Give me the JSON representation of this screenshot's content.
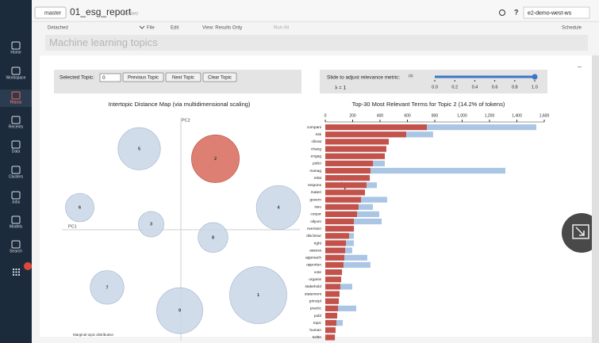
{
  "header": {
    "branch": "master",
    "title": "01_esg_report",
    "language": "(Python)",
    "help": "?",
    "workspace": "e2-demo-west-ws"
  },
  "sidebar": {
    "items": [
      "Home",
      "Workspace",
      "Repos",
      "Recents",
      "Data",
      "Clusters",
      "Jobs",
      "Models",
      "Search"
    ]
  },
  "toolbar": {
    "cluster": "Detached",
    "menus": [
      "File",
      "Edit",
      "View: Results Only"
    ],
    "run": "Run All",
    "schedule": "Schedule"
  },
  "cell": {
    "title": "Machine learning topics"
  },
  "controls": {
    "selected_label": "Selected Topic:",
    "selected_value": "0",
    "buttons": [
      "Previous Topic",
      "Next Topic",
      "Clear Topic"
    ],
    "slider_label": "Slide to adjust relevance metric:",
    "slider_note": "(2)",
    "lambda_label": "λ = 1",
    "slider": {
      "value": 1,
      "range": [
        0,
        1
      ],
      "ticks": [
        {
          "value": 0,
          "label": "0.0"
        },
        0.2,
        0.4,
        0.6,
        0.8,
        {
          "value": 1,
          "label": "1.0"
        }
      ]
    }
  },
  "chart_data": [
    {
      "type": "bubble",
      "title": "Intertopic Distance Map (via multidimensional scaling)",
      "x_label": "PC1",
      "y_label": "PC2",
      "footer": "Marginal topic distribution",
      "labels": [
        "1",
        "2",
        "3",
        "4",
        "5",
        "6",
        "7",
        "8",
        "9"
      ],
      "x": [
        0.65,
        0.29,
        -0.25,
        0.82,
        -0.35,
        -0.85,
        -0.62,
        0.27,
        -0.01
      ],
      "y": [
        -0.59,
        0.64,
        0.05,
        0.2,
        0.73,
        0.2,
        -0.52,
        -0.07,
        -0.73
      ],
      "size": [
        20,
        14,
        4,
        12,
        11,
        5,
        7,
        5.5,
        13
      ],
      "xlim": [
        -1,
        1
      ],
      "ylim": [
        -1,
        1
      ],
      "color": "#c9d6e8",
      "highlight": "2",
      "highlight_color": "#d8695a"
    },
    {
      "type": "bar",
      "orientation": "horizontal",
      "title": "Top-30 Most Relevant Terms for Topic 2 (14.2% of tokens)",
      "categories": [
        "compani",
        "risk",
        "climat",
        "chang",
        "engag",
        "polici",
        "manag",
        "relat",
        "respons",
        "materi",
        "govern",
        "issu",
        "corpor",
        "oilyum",
        "nversion",
        "disclosur",
        "right",
        "assess",
        "approach",
        "opportun",
        "vote",
        "organis",
        "stakehold",
        "statement",
        "principl",
        "practic",
        "publ",
        "topic",
        "human",
        "twitte"
      ],
      "series": [
        {
          "color": "#aac6e4",
          "values": [
            1542,
            788,
            464,
            446,
            435,
            435,
            1316,
            325,
            377,
            290,
            452,
            348,
            394,
            412,
            209,
            209,
            209,
            197,
            307,
            330,
            122,
            116,
            197,
            104,
            99,
            226,
            87,
            128,
            75,
            70
          ]
        },
        {
          "color": "#c3524a",
          "values": [
            742,
            591,
            464,
            446,
            435,
            348,
            330,
            325,
            301,
            290,
            261,
            243,
            232,
            209,
            209,
            174,
            151,
            145,
            139,
            133,
            122,
            116,
            110,
            104,
            99,
            93,
            87,
            81,
            75,
            70
          ]
        }
      ],
      "xlim": [
        0,
        1600
      ],
      "xticks": [
        0,
        200,
        400,
        600,
        800,
        {
          "value": 1000,
          "label": "1,000"
        },
        {
          "value": 1200,
          "label": "1,200"
        },
        {
          "value": 1400,
          "label": "1,400"
        },
        {
          "value": 1600,
          "label": "1,600"
        }
      ]
    }
  ]
}
